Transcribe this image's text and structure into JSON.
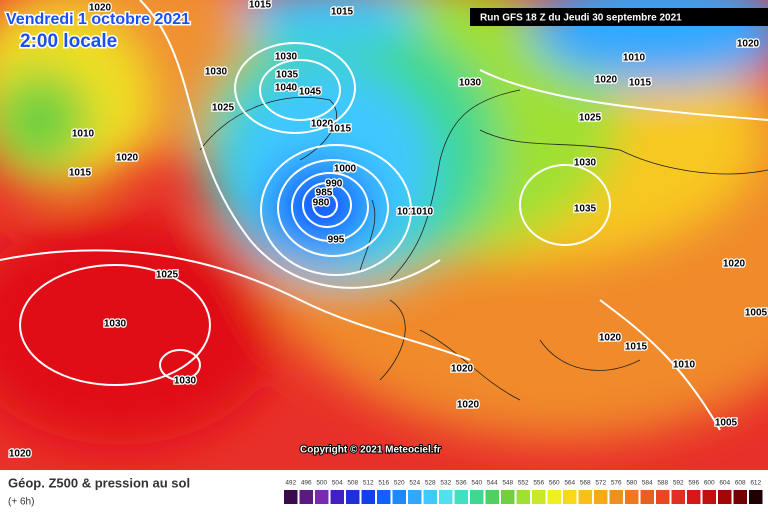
{
  "header": {
    "date": "Vendredi 1 octobre 2021",
    "time": "2:00 locale",
    "run": "Run GFS 18 Z du Jeudi 30 septembre 2021"
  },
  "copyright": "Copyright © 2021 Meteociel.fr",
  "footer": {
    "title": "Géop. Z500 & pression au sol",
    "step": "(+ 6h)"
  },
  "scale": {
    "labels": [
      492,
      496,
      500,
      504,
      508,
      512,
      516,
      520,
      524,
      528,
      532,
      536,
      540,
      544,
      548,
      552,
      556,
      560,
      564,
      568,
      572,
      576,
      580,
      584,
      588,
      592,
      596,
      600,
      604,
      608,
      612
    ],
    "colors": [
      "#3a0a4a",
      "#5a1a80",
      "#7a2ab0",
      "#4020c0",
      "#2030d8",
      "#1040f0",
      "#1060ff",
      "#2088ff",
      "#30a8ff",
      "#40c8ff",
      "#50e0f0",
      "#40e0c0",
      "#40d890",
      "#50d060",
      "#70d040",
      "#a0e030",
      "#c8e828",
      "#f0f020",
      "#f8d818",
      "#f8c018",
      "#f8a818",
      "#f09020",
      "#f07820",
      "#e86020",
      "#e84820",
      "#e03020",
      "#d81818",
      "#c01010",
      "#a00808",
      "#700404",
      "#200000"
    ]
  },
  "isobars": [
    1020,
    1015,
    1015,
    1030,
    1030,
    1035,
    1040,
    1045,
    1025,
    1020,
    1015,
    1010,
    1020,
    1015,
    1000,
    990,
    985,
    980,
    995,
    1010,
    1010,
    1030,
    1020,
    1010,
    1020,
    1015,
    1025,
    1030,
    1035,
    1020,
    1025,
    1030,
    1030,
    1005,
    1020,
    1015,
    1010,
    1020,
    1020,
    1005,
    1020
  ]
}
